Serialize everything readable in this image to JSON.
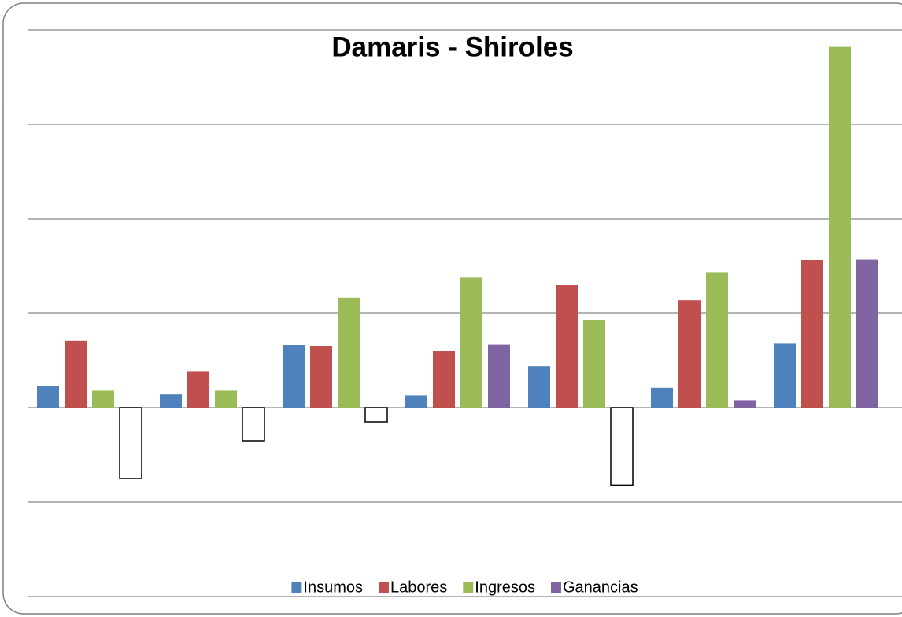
{
  "chart_data": {
    "type": "bar",
    "title": "Damaris - Shiroles",
    "categories": [
      null,
      null,
      null,
      null,
      null,
      null,
      null
    ],
    "series": [
      {
        "name": "Insumos",
        "color": "#4f81bd",
        "values": [
          0.23,
          0.14,
          0.66,
          0.13,
          0.44,
          0.21,
          0.68
        ]
      },
      {
        "name": "Labores",
        "color": "#c0504d",
        "values": [
          0.71,
          0.38,
          0.65,
          0.6,
          1.3,
          1.14,
          1.56
        ]
      },
      {
        "name": "Ingresos",
        "color": "#9bbb59",
        "values": [
          0.18,
          0.18,
          1.16,
          1.38,
          0.93,
          1.43,
          3.82
        ]
      },
      {
        "name": "Ganancias",
        "color": "#8064a2",
        "negative_color": "#ffffff",
        "values": [
          -0.75,
          -0.35,
          -0.15,
          0.67,
          -0.82,
          0.08,
          1.57
        ]
      }
    ],
    "ylim": [
      -2,
      4
    ],
    "yticks": [
      -2,
      -1,
      0,
      1,
      2,
      3,
      4
    ],
    "grid": true,
    "legend": "bottom"
  }
}
